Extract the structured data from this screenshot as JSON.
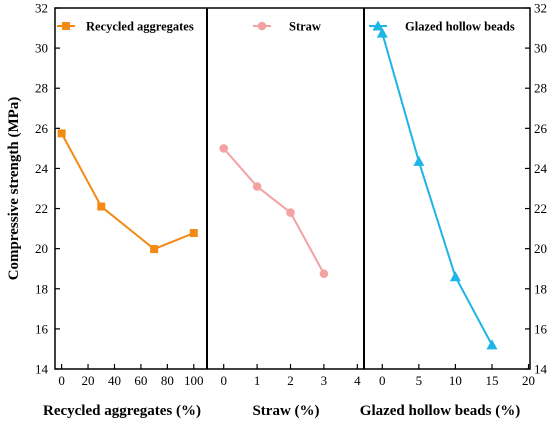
{
  "chart_data": {
    "type": "line",
    "ylabel": "Compressive strength (MPa)",
    "ylim": [
      14,
      32
    ],
    "yticks": [
      14,
      16,
      18,
      20,
      22,
      24,
      26,
      28,
      30,
      32
    ],
    "grid": false,
    "legend_placement": "top of each panel",
    "panels": [
      {
        "xlabel": "Recycled aggregates (%)",
        "xlim": [
          -5,
          110
        ],
        "xticks": [
          0,
          20,
          40,
          60,
          80,
          100
        ],
        "series": [
          {
            "name": "Recycled aggregates",
            "color": "#F28A16",
            "marker": "square",
            "x": [
              0,
              30,
              70,
              100
            ],
            "y": [
              25.75,
              22.1,
              19.98,
              20.78
            ]
          }
        ]
      },
      {
        "xlabel": "Straw (%)",
        "xlim": [
          -0.5,
          4.2
        ],
        "xticks": [
          0,
          1,
          2,
          3,
          4
        ],
        "series": [
          {
            "name": "Straw",
            "color": "#F4A1A1",
            "marker": "circle",
            "x": [
              0,
              1,
              2,
              3
            ],
            "y": [
              25.0,
              23.1,
              21.8,
              18.75
            ]
          }
        ]
      },
      {
        "xlabel": "Glazed hollow beads (%)",
        "xlim": [
          -2.5,
          20.2
        ],
        "xticks": [
          0,
          5,
          10,
          15,
          20
        ],
        "series": [
          {
            "name": "Glazed hollow beads",
            "color": "#1EB4E6",
            "marker": "triangle",
            "x": [
              0,
              5,
              10,
              15
            ],
            "y": [
              30.75,
              24.35,
              18.6,
              15.2
            ]
          }
        ]
      }
    ]
  }
}
